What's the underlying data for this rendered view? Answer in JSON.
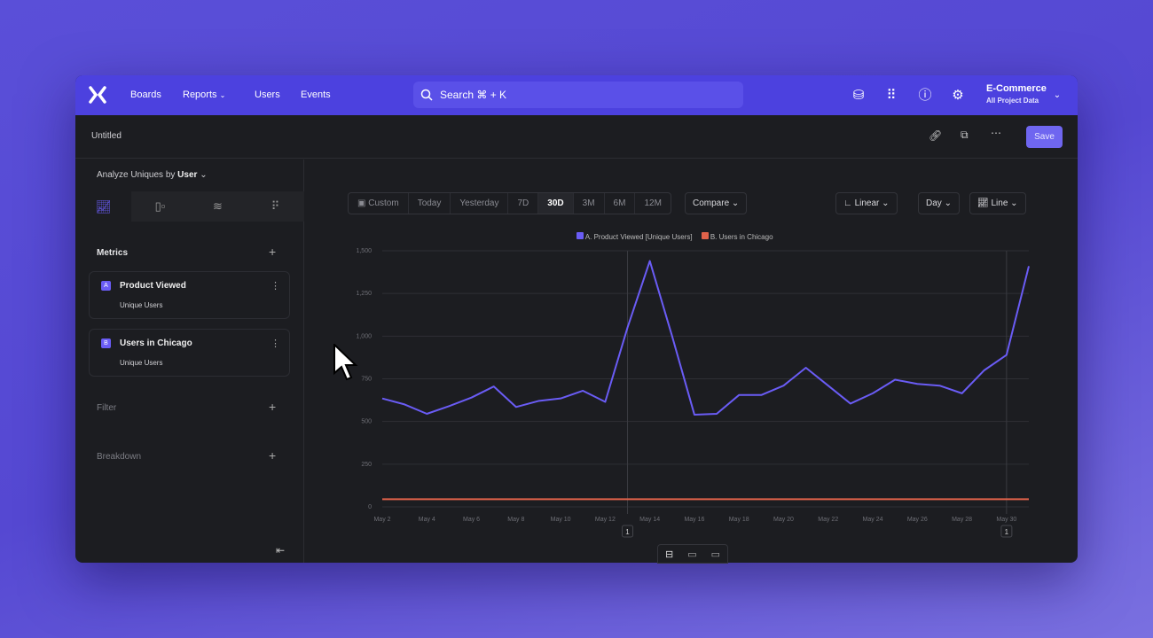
{
  "topbar": {
    "nav": [
      "Boards",
      "Reports",
      "Users",
      "Events"
    ],
    "search_placeholder": "Search  ⌘ + K",
    "project_name": "E-Commerce",
    "project_scope": "All Project Data",
    "icons": [
      "database-settings-icon",
      "apps-grid-icon",
      "help-icon",
      "settings-icon"
    ]
  },
  "report": {
    "title": "Untitled",
    "save_label": "Save"
  },
  "sidebar": {
    "analyze_label": "Analyze Uniques by",
    "analyze_value": "User",
    "tabs": [
      "insights-chart-icon",
      "funnels-icon",
      "flows-icon",
      "retention-icon"
    ],
    "metrics_label": "Metrics",
    "metrics": [
      {
        "badge": "A",
        "name": "Product Viewed",
        "sub": "Unique Users"
      },
      {
        "badge": "B",
        "name": "Users in Chicago",
        "sub": "Unique Users"
      }
    ],
    "filter_label": "Filter",
    "breakdown_label": "Breakdown"
  },
  "toolbar": {
    "ranges": [
      "Custom",
      "Today",
      "Yesterday",
      "7D",
      "30D",
      "3M",
      "6M",
      "12M"
    ],
    "selected_range": "30D",
    "compare_label": "Compare",
    "scale_label": "Linear",
    "interval_label": "Day",
    "chart_type_label": "Line"
  },
  "colors": {
    "accent": "#4c41df",
    "series_a": "#6a5cf5",
    "series_b": "#e0624a"
  },
  "chart_data": {
    "type": "line",
    "x": [
      "May 2",
      "May 3",
      "May 4",
      "May 5",
      "May 6",
      "May 7",
      "May 8",
      "May 9",
      "May 10",
      "May 11",
      "May 12",
      "May 13",
      "May 14",
      "May 15",
      "May 16",
      "May 17",
      "May 18",
      "May 19",
      "May 20",
      "May 21",
      "May 22",
      "May 23",
      "May 24",
      "May 25",
      "May 26",
      "May 27",
      "May 28",
      "May 29",
      "May 30",
      "May 31"
    ],
    "x_tick_labels": [
      "May 2",
      "May 4",
      "May 6",
      "May 8",
      "May 10",
      "May 12",
      "May 14",
      "May 16",
      "May 18",
      "May 20",
      "May 22",
      "May 24",
      "May 26",
      "May 28",
      "May 30"
    ],
    "y_tick_labels": [
      "0",
      "250",
      "500",
      "750",
      "1,000",
      "1,250",
      "1,500"
    ],
    "ylim": [
      0,
      1500
    ],
    "grid": true,
    "legend": "top-center",
    "series": [
      {
        "name": "A. Product Viewed [Unique Users]",
        "values": [
          635,
          600,
          545,
          590,
          640,
          705,
          585,
          620,
          635,
          680,
          615,
          1050,
          1440,
          1000,
          540,
          545,
          655,
          655,
          710,
          815,
          710,
          605,
          665,
          745,
          720,
          710,
          665,
          800,
          890,
          1410
        ]
      },
      {
        "name": "B. Users in Chicago",
        "values": [
          45,
          45,
          45,
          45,
          45,
          45,
          45,
          45,
          45,
          45,
          45,
          45,
          45,
          45,
          45,
          45,
          45,
          45,
          45,
          45,
          45,
          45,
          45,
          45,
          45,
          45,
          45,
          45,
          45,
          45
        ]
      }
    ],
    "annotations": [
      {
        "date": "May 13",
        "label": "1"
      },
      {
        "date": "May 30",
        "label": "1"
      }
    ]
  }
}
